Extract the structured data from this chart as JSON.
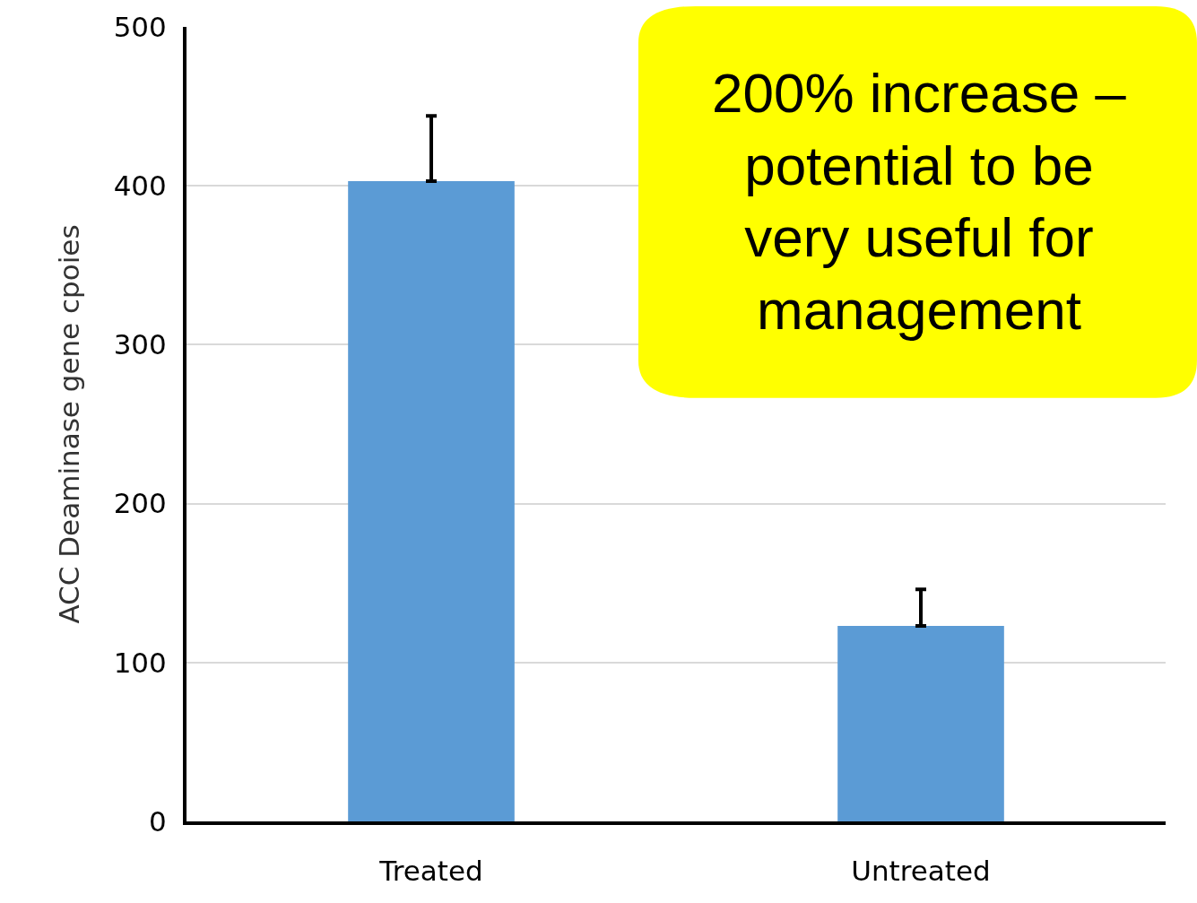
{
  "chart_data": {
    "type": "bar",
    "ylabel": "ACC Deaminase gene cpoies",
    "categories": [
      "Treated",
      "Untreated"
    ],
    "values": [
      403,
      123
    ],
    "color": "#5b9bd5",
    "errors": [
      [
        403,
        444
      ],
      [
        123,
        146
      ]
    ],
    "ylim": [
      0,
      500
    ],
    "yticks": [
      0,
      100,
      200,
      300,
      400,
      500
    ],
    "grid": "y",
    "annotations": [
      "200% increase –\npotential to be\nvery useful for\nmanagement"
    ]
  }
}
